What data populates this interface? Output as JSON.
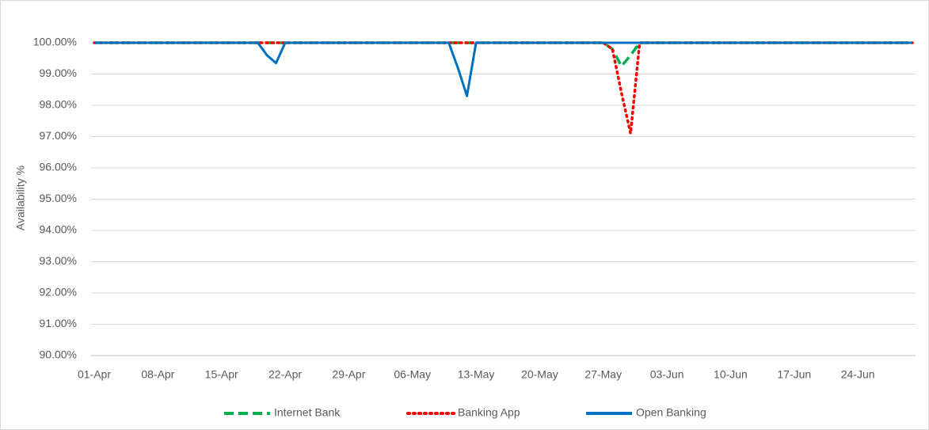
{
  "chart_data": {
    "type": "line",
    "y_label": "Availability %",
    "categories": [
      "01-Apr",
      null,
      null,
      null,
      null,
      null,
      null,
      "08-Apr",
      null,
      null,
      null,
      null,
      null,
      null,
      "15-Apr",
      null,
      null,
      null,
      null,
      null,
      null,
      "22-Apr",
      null,
      null,
      null,
      null,
      null,
      null,
      "29-Apr",
      null,
      null,
      null,
      null,
      null,
      null,
      "06-May",
      null,
      null,
      null,
      null,
      null,
      null,
      "13-May",
      null,
      null,
      null,
      null,
      null,
      null,
      "20-May",
      null,
      null,
      null,
      null,
      null,
      null,
      "27-May",
      null,
      null,
      null,
      null,
      null,
      null,
      "03-Jun",
      null,
      null,
      null,
      null,
      null,
      null,
      "10-Jun",
      null,
      null,
      null,
      null,
      null,
      null,
      "17-Jun",
      null,
      null,
      null,
      null,
      null,
      null,
      "24-Jun",
      null,
      null,
      null,
      null,
      null,
      null
    ],
    "series": [
      {
        "name": "Internet Bank",
        "color": "#00b050",
        "style": "dashed",
        "values": [
          100,
          100,
          100,
          100,
          100,
          100,
          100,
          100,
          100,
          100,
          100,
          100,
          100,
          100,
          100,
          100,
          100,
          100,
          100,
          100,
          100,
          100,
          100,
          100,
          100,
          100,
          100,
          100,
          100,
          100,
          100,
          100,
          100,
          100,
          100,
          100,
          100,
          100,
          100,
          100,
          100,
          100,
          100,
          100,
          100,
          100,
          100,
          100,
          100,
          100,
          100,
          100,
          100,
          100,
          100,
          100,
          100,
          99.8,
          99.25,
          99.6,
          100,
          100,
          100,
          100,
          100,
          100,
          100,
          100,
          100,
          100,
          100,
          100,
          100,
          100,
          100,
          100,
          100,
          100,
          100,
          100,
          100,
          100,
          100,
          100,
          100,
          100,
          100,
          100,
          100,
          100,
          100
        ]
      },
      {
        "name": "Banking App",
        "color": "#ff0000",
        "style": "dotted",
        "values": [
          100,
          100,
          100,
          100,
          100,
          100,
          100,
          100,
          100,
          100,
          100,
          100,
          100,
          100,
          100,
          100,
          100,
          100,
          100,
          100,
          100,
          100,
          100,
          100,
          100,
          100,
          100,
          100,
          100,
          100,
          100,
          100,
          100,
          100,
          100,
          100,
          100,
          100,
          100,
          100,
          100,
          100,
          100,
          100,
          100,
          100,
          100,
          100,
          100,
          100,
          100,
          100,
          100,
          100,
          100,
          100,
          100,
          99.8,
          98.4,
          97.1,
          100,
          100,
          100,
          100,
          100,
          100,
          100,
          100,
          100,
          100,
          100,
          100,
          100,
          100,
          100,
          100,
          100,
          100,
          100,
          100,
          100,
          100,
          100,
          100,
          100,
          100,
          100,
          100,
          100,
          100,
          100
        ]
      },
      {
        "name": "Open Banking",
        "color": "#0070c0",
        "style": "solid",
        "values": [
          100,
          100,
          100,
          100,
          100,
          100,
          100,
          100,
          100,
          100,
          100,
          100,
          100,
          100,
          100,
          100,
          100,
          100,
          100,
          99.6,
          99.35,
          100,
          100,
          100,
          100,
          100,
          100,
          100,
          100,
          100,
          100,
          100,
          100,
          100,
          100,
          100,
          100,
          100,
          100,
          100,
          99.2,
          98.3,
          100,
          100,
          100,
          100,
          100,
          100,
          100,
          100,
          100,
          100,
          100,
          100,
          100,
          100,
          100,
          100,
          100,
          100,
          100,
          100,
          100,
          100,
          100,
          100,
          100,
          100,
          100,
          100,
          100,
          100,
          100,
          100,
          100,
          100,
          100,
          100,
          100,
          100,
          100,
          100,
          100,
          100,
          100,
          100,
          100,
          100,
          100,
          100,
          100
        ]
      }
    ],
    "ylim": [
      90,
      100
    ],
    "yticks": [
      {
        "value": 90,
        "label": "90.00%"
      },
      {
        "value": 91,
        "label": "91.00%"
      },
      {
        "value": 92,
        "label": "92.00%"
      },
      {
        "value": 93,
        "label": "93.00%"
      },
      {
        "value": 94,
        "label": "94.00%"
      },
      {
        "value": 95,
        "label": "95.00%"
      },
      {
        "value": 96,
        "label": "96.00%"
      },
      {
        "value": 97,
        "label": "97.00%"
      },
      {
        "value": 98,
        "label": "98.00%"
      },
      {
        "value": 99,
        "label": "99.00%"
      },
      {
        "value": 100,
        "label": "100.00%"
      }
    ],
    "grid": true,
    "legend": "bottom"
  }
}
